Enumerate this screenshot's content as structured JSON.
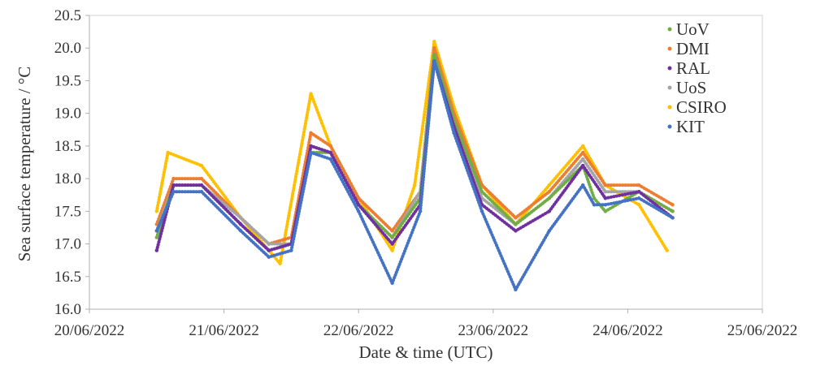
{
  "chart_data": {
    "type": "scatter",
    "xlabel": "Date & time (UTC)",
    "ylabel": "Sea surface temperature / °C",
    "xlim": [
      "2022-06-20T00:00",
      "2022-06-25T00:00"
    ],
    "ylim": [
      16.0,
      20.5
    ],
    "x_ticks": [
      "20/06/2022",
      "21/06/2022",
      "22/06/2022",
      "23/06/2022",
      "24/06/2022",
      "25/06/2022"
    ],
    "y_ticks": [
      "16.0",
      "16.5",
      "17.0",
      "17.5",
      "18.0",
      "18.5",
      "19.0",
      "19.5",
      "20.0",
      "20.5"
    ],
    "grid": false,
    "legend_position": "top-right",
    "series": [
      {
        "name": "UoV",
        "color": "#70ad47",
        "x": [
          "2022-06-20T12:00",
          "2022-06-20T15:00",
          "2022-06-20T20:00",
          "2022-06-21T03:00",
          "2022-06-21T08:00",
          "2022-06-21T12:00",
          "2022-06-21T15:30",
          "2022-06-21T19:00",
          "2022-06-22T00:00",
          "2022-06-22T06:00",
          "2022-06-22T11:00",
          "2022-06-22T13:30",
          "2022-06-22T17:00",
          "2022-06-22T22:00",
          "2022-06-23T04:00",
          "2022-06-23T10:00",
          "2022-06-23T16:00",
          "2022-06-23T18:00",
          "2022-06-23T20:00",
          "2022-06-24T02:00",
          "2022-06-24T08:00"
        ],
        "y": [
          17.1,
          17.9,
          17.9,
          17.3,
          16.9,
          17.0,
          18.4,
          18.4,
          17.6,
          17.1,
          17.7,
          19.9,
          18.9,
          17.8,
          17.3,
          17.7,
          18.2,
          17.7,
          17.5,
          17.8,
          17.5
        ]
      },
      {
        "name": "DMI",
        "color": "#ed7d31",
        "x": [
          "2022-06-20T12:00",
          "2022-06-20T15:00",
          "2022-06-20T20:00",
          "2022-06-21T03:00",
          "2022-06-21T08:00",
          "2022-06-21T12:00",
          "2022-06-21T15:30",
          "2022-06-21T19:00",
          "2022-06-22T00:00",
          "2022-06-22T06:00",
          "2022-06-22T11:00",
          "2022-06-22T13:30",
          "2022-06-22T17:00",
          "2022-06-22T22:00",
          "2022-06-23T04:00",
          "2022-06-23T10:00",
          "2022-06-23T16:00",
          "2022-06-23T20:00",
          "2022-06-24T02:00",
          "2022-06-24T08:00"
        ],
        "y": [
          17.3,
          18.0,
          18.0,
          17.4,
          17.0,
          17.1,
          18.7,
          18.5,
          17.7,
          17.2,
          17.8,
          20.0,
          19.0,
          17.9,
          17.4,
          17.8,
          18.4,
          17.9,
          17.9,
          17.6
        ]
      },
      {
        "name": "RAL",
        "color": "#7030a0",
        "x": [
          "2022-06-20T12:00",
          "2022-06-20T15:00",
          "2022-06-20T20:00",
          "2022-06-21T03:00",
          "2022-06-21T08:00",
          "2022-06-21T12:00",
          "2022-06-21T15:30",
          "2022-06-21T19:00",
          "2022-06-22T00:00",
          "2022-06-22T06:00",
          "2022-06-22T11:00",
          "2022-06-22T13:30",
          "2022-06-22T17:00",
          "2022-06-22T22:00",
          "2022-06-23T04:00",
          "2022-06-23T10:00",
          "2022-06-23T16:00",
          "2022-06-23T20:00",
          "2022-06-24T02:00",
          "2022-06-24T08:00"
        ],
        "y": [
          16.9,
          17.9,
          17.9,
          17.3,
          16.9,
          17.0,
          18.5,
          18.4,
          17.6,
          17.0,
          17.6,
          19.8,
          18.8,
          17.6,
          17.2,
          17.5,
          18.2,
          17.7,
          17.8,
          17.4
        ]
      },
      {
        "name": "UoS",
        "color": "#a5a5a5",
        "x": [
          "2022-06-20T12:00",
          "2022-06-20T15:00",
          "2022-06-20T20:00",
          "2022-06-21T03:00",
          "2022-06-21T08:00",
          "2022-06-21T12:00",
          "2022-06-21T15:30",
          "2022-06-21T19:00",
          "2022-06-22T00:00",
          "2022-06-22T06:00",
          "2022-06-22T11:00",
          "2022-06-22T13:30",
          "2022-06-22T17:00",
          "2022-06-22T22:00",
          "2022-06-23T04:00",
          "2022-06-23T10:00",
          "2022-06-23T16:00",
          "2022-06-23T20:00",
          "2022-06-24T02:00",
          "2022-06-24T08:00"
        ],
        "y": [
          17.2,
          17.9,
          17.9,
          17.4,
          17.0,
          17.0,
          18.5,
          18.4,
          17.6,
          17.1,
          17.8,
          19.9,
          18.9,
          17.7,
          17.3,
          17.7,
          18.3,
          17.8,
          17.8,
          17.5
        ]
      },
      {
        "name": "CSIRO",
        "color": "#ffc000",
        "x": [
          "2022-06-20T12:00",
          "2022-06-20T14:00",
          "2022-06-20T20:00",
          "2022-06-21T03:00",
          "2022-06-21T10:00",
          "2022-06-21T15:30",
          "2022-06-21T19:00",
          "2022-06-22T00:00",
          "2022-06-22T06:00",
          "2022-06-22T10:00",
          "2022-06-22T13:30",
          "2022-06-22T17:00",
          "2022-06-22T22:00",
          "2022-06-23T04:00",
          "2022-06-23T10:00",
          "2022-06-23T16:00",
          "2022-06-23T20:00",
          "2022-06-24T02:00",
          "2022-06-24T07:00"
        ],
        "y": [
          17.5,
          18.4,
          18.2,
          17.4,
          16.7,
          19.3,
          18.5,
          17.7,
          16.9,
          17.9,
          20.1,
          19.1,
          17.9,
          17.3,
          17.9,
          18.5,
          17.9,
          17.6,
          16.9
        ]
      },
      {
        "name": "KIT",
        "color": "#4472c4",
        "x": [
          "2022-06-20T12:00",
          "2022-06-20T15:00",
          "2022-06-20T20:00",
          "2022-06-21T03:00",
          "2022-06-21T08:00",
          "2022-06-21T12:00",
          "2022-06-21T15:30",
          "2022-06-21T19:00",
          "2022-06-22T00:00",
          "2022-06-22T06:00",
          "2022-06-22T11:00",
          "2022-06-22T13:30",
          "2022-06-22T17:00",
          "2022-06-22T22:00",
          "2022-06-23T04:00",
          "2022-06-23T10:00",
          "2022-06-23T16:00",
          "2022-06-23T18:00",
          "2022-06-23T20:00",
          "2022-06-24T02:00",
          "2022-06-24T08:00"
        ],
        "y": [
          17.2,
          17.8,
          17.8,
          17.2,
          16.8,
          16.9,
          18.4,
          18.3,
          17.5,
          16.4,
          17.5,
          19.8,
          18.7,
          17.5,
          16.3,
          17.2,
          17.9,
          17.6,
          17.6,
          17.7,
          17.4
        ]
      }
    ]
  }
}
